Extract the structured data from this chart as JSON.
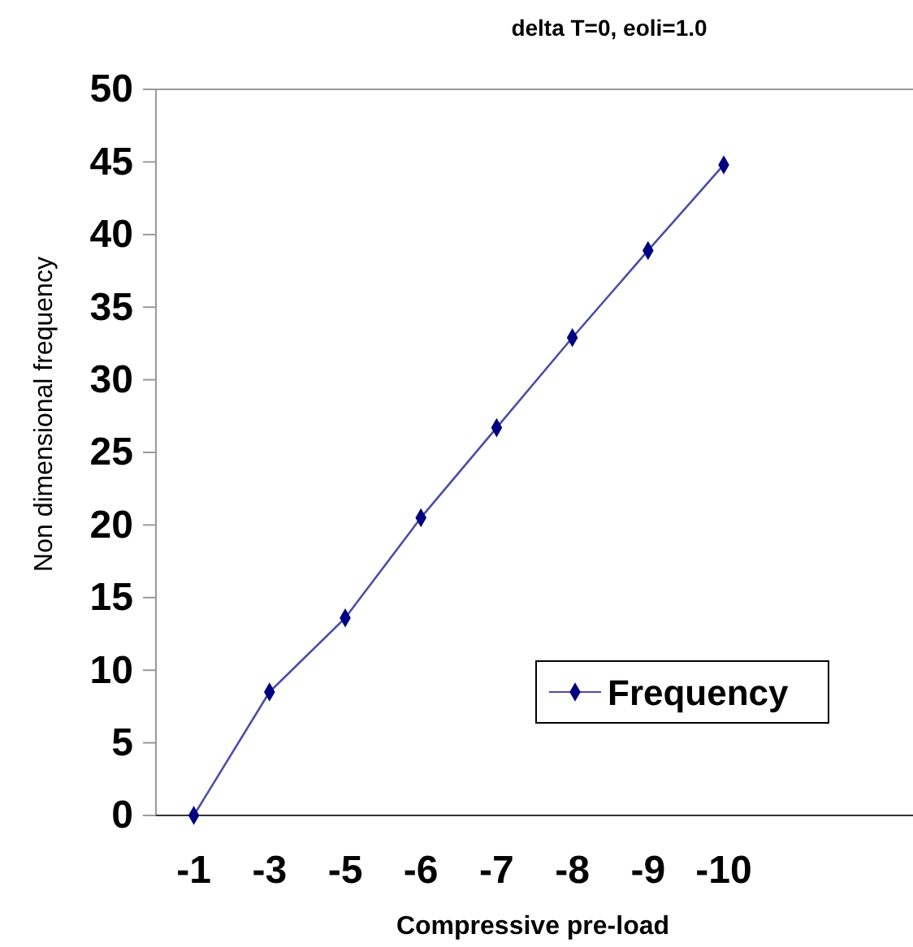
{
  "chart_data": {
    "type": "line",
    "title": "delta  T=0, eoli=1.0",
    "xlabel": "Compressive pre-load",
    "ylabel": "Non dimensional frequency",
    "categories": [
      "-1",
      "-3",
      "-5",
      "-6",
      "-7",
      "-8",
      "-9",
      "-10",
      null,
      null
    ],
    "series": [
      {
        "name": "Frequency",
        "color": "#000080",
        "values": [
          0,
          8.5,
          13.6,
          20.5,
          26.7,
          32.9,
          38.9,
          44.8,
          null,
          null
        ]
      }
    ],
    "ylim": [
      0,
      50
    ],
    "yticks": [
      0,
      5,
      10,
      15,
      20,
      25,
      30,
      35,
      40,
      45,
      50
    ],
    "grid": false,
    "legend": "bottom right",
    "marker": "diamond",
    "line_style": "solid"
  }
}
